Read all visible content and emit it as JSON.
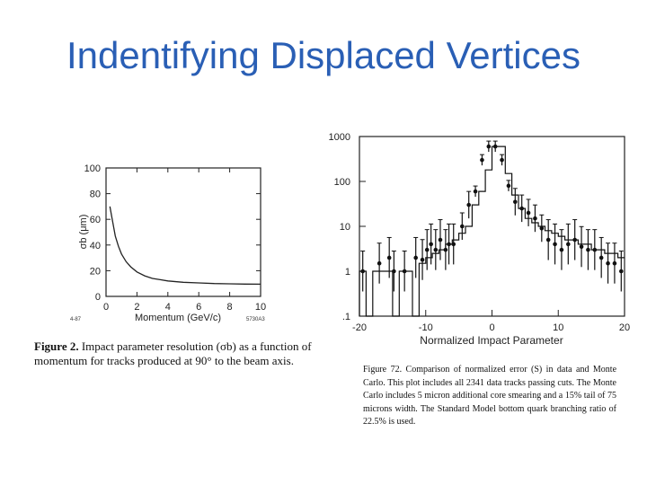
{
  "slide": {
    "title": "Indentifying Displaced Vertices"
  },
  "figure_left": {
    "caption_label": "Figure 2.",
    "caption_text": "Impact parameter resolution (σb) as a function of momentum for tracks produced at 90° to the beam axis.",
    "corner_left": "4-87",
    "corner_right": "5730A3"
  },
  "figure_right": {
    "caption_label": "Figure 72.",
    "caption_text": "Comparison of normalized error (S) in data and Monte Carlo. This plot includes all 2341 data tracks passing cuts. The Monte Carlo includes 5 micron additional core smearing and a 15% tail of 75 microns width. The Standard Model bottom quark branching ratio of 22.5% is used."
  },
  "chart_data": [
    {
      "type": "line",
      "title": "",
      "xlabel": "Momentum    (GeV/c)",
      "ylabel": "σb  (μm)",
      "xlim": [
        0,
        10
      ],
      "ylim": [
        0,
        100
      ],
      "xticks": [
        "0",
        "2",
        "4",
        "6",
        "8",
        "10"
      ],
      "yticks": [
        "100",
        "80",
        "60",
        "40",
        "20",
        "0"
      ],
      "series": [
        {
          "x": [
            0.25,
            0.4,
            0.6,
            0.8,
            1.0,
            1.3,
            1.6,
            2.0,
            2.5,
            3.0,
            3.5,
            4.0,
            5.0,
            6.0,
            7.0,
            8.0,
            9.0,
            10.0
          ],
          "values": [
            70,
            60,
            47,
            39,
            33,
            27,
            23,
            19,
            16,
            14,
            13,
            12,
            11,
            10.5,
            10,
            9.8,
            9.6,
            9.5
          ]
        }
      ],
      "grid": false
    },
    {
      "type": "line",
      "title": "",
      "xlabel": "Normalized Impact Parameter",
      "ylabel": "",
      "xlim": [
        -20,
        20
      ],
      "ylim": [
        0.1,
        1000
      ],
      "log_y": true,
      "xticks": [
        "-20",
        "-10",
        "0",
        "10",
        "20"
      ],
      "yticks": [
        "1000",
        "100",
        "10",
        "1",
        ".1"
      ],
      "histogram": {
        "edges": [
          -20,
          -19,
          -18,
          -17,
          -16,
          -15,
          -14,
          -13,
          -12,
          -11,
          -10,
          -9,
          -8,
          -7,
          -6,
          -5,
          -4,
          -3,
          -2,
          -1,
          0,
          1,
          2,
          3,
          4,
          5,
          6,
          7,
          8,
          9,
          10,
          11,
          12,
          13,
          14,
          15,
          16,
          17,
          18,
          19,
          20
        ],
        "values": [
          1,
          0.1,
          1,
          1,
          1,
          0.1,
          1,
          1,
          0.1,
          1.5,
          2,
          2.5,
          3,
          4,
          5,
          7,
          10,
          30,
          60,
          180,
          600,
          600,
          150,
          50,
          25,
          15,
          12,
          10,
          8,
          7,
          6,
          5,
          5,
          4,
          4,
          3,
          3,
          2.5,
          2.5,
          2
        ]
      },
      "points": {
        "x": [
          -19.5,
          -17,
          -15.5,
          -14.8,
          -13.2,
          -11.5,
          -10.5,
          -9.8,
          -9.2,
          -8.5,
          -7.8,
          -7,
          -6.5,
          -5.8,
          -4.5,
          -3.5,
          -2.5,
          -1.5,
          -0.5,
          0.5,
          1.5,
          2.5,
          3.5,
          4.5,
          5.5,
          6.5,
          7.5,
          8.5,
          9.5,
          10.5,
          11.5,
          12.5,
          13.5,
          14.5,
          15.5,
          16.5,
          17.5,
          18.5,
          19.5
        ],
        "values": [
          1,
          1.5,
          2,
          1,
          1,
          2,
          1.8,
          3,
          4,
          3,
          5,
          3,
          4,
          4,
          10,
          30,
          60,
          300,
          600,
          600,
          300,
          80,
          35,
          25,
          20,
          15,
          9,
          5,
          4,
          3,
          4,
          5,
          3.5,
          3,
          3,
          2,
          1.5,
          1.5,
          1
        ]
      },
      "grid": false
    }
  ]
}
